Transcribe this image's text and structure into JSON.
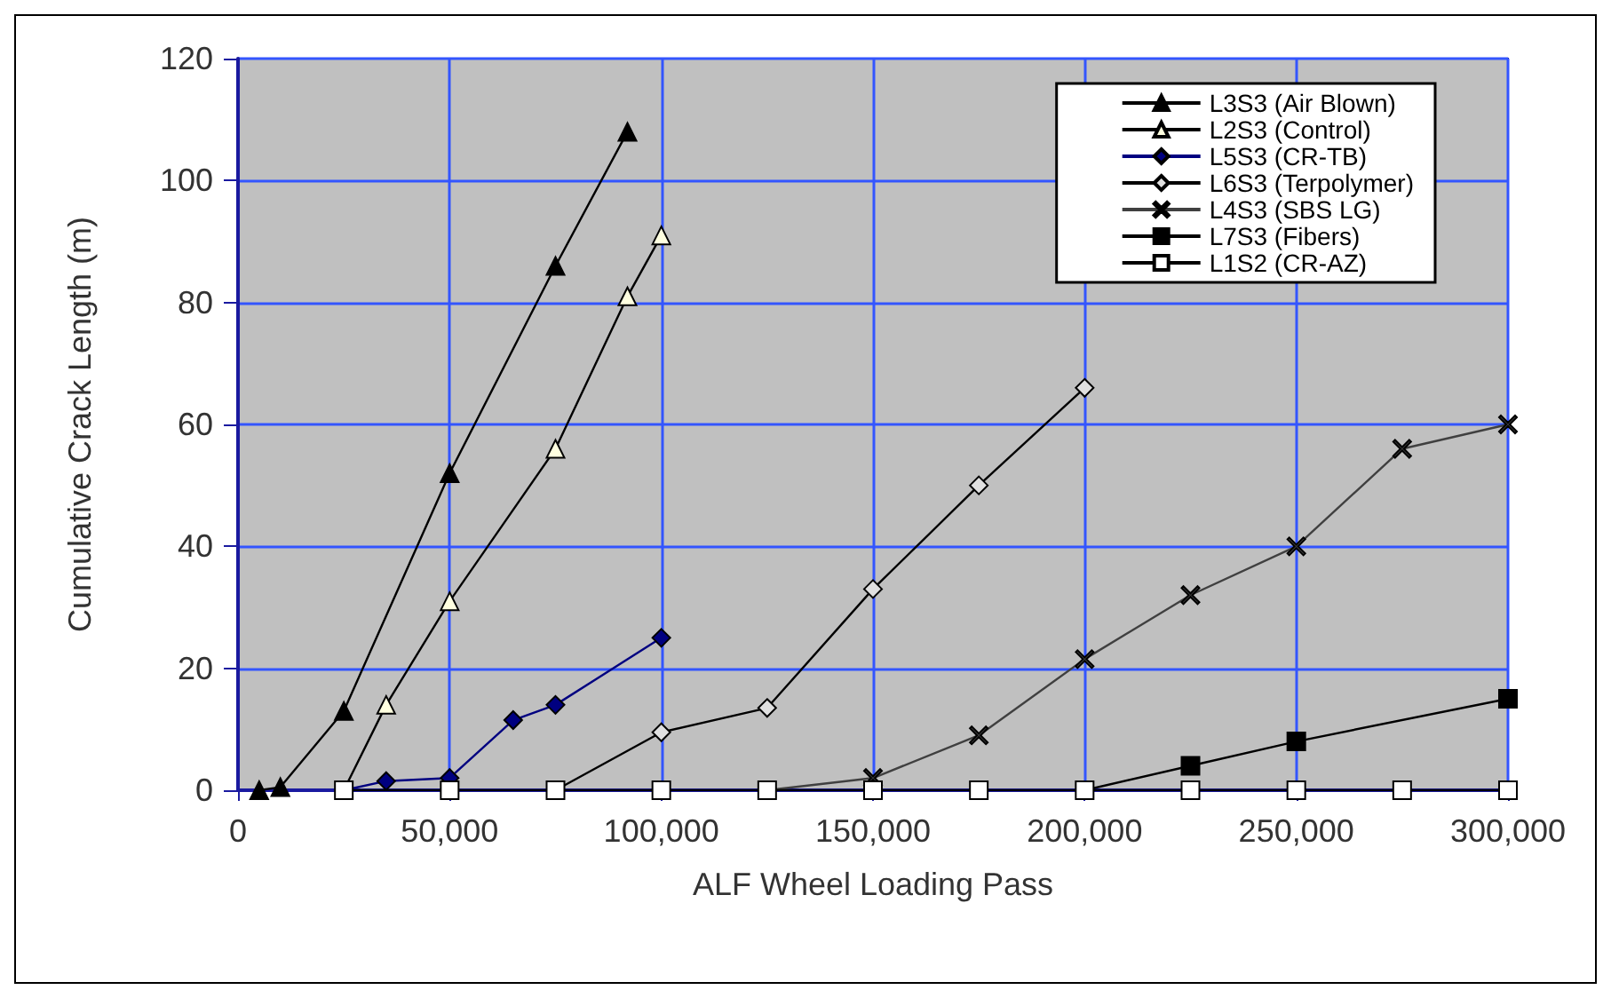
{
  "chart_data": {
    "type": "line",
    "xlabel": "ALF Wheel Loading Pass",
    "ylabel": "Cumulative Crack Length (m)",
    "xlim": [
      0,
      300000
    ],
    "xticks": [
      0,
      {
        "value": 50000,
        "label": "50,000"
      },
      {
        "value": 100000,
        "label": "100,000"
      },
      {
        "value": 150000,
        "label": "150,000"
      },
      {
        "value": 200000,
        "label": "200,000"
      },
      {
        "value": 250000,
        "label": "250,000"
      },
      {
        "value": 300000,
        "label": "300,000"
      }
    ],
    "ylim": [
      0,
      120
    ],
    "yticks": [
      0,
      20,
      40,
      60,
      80,
      100,
      120
    ],
    "grid": true,
    "legend": "top right",
    "series": [
      {
        "name": "L3S3 (Air Blown)",
        "color": "#000000",
        "marker": "triangle",
        "x": [
          5000,
          10000,
          25000,
          50000,
          75000,
          92000
        ],
        "values": [
          0,
          0.5,
          13,
          52,
          86,
          108
        ]
      },
      {
        "name": "L2S3 (Control)",
        "color": "#ffffe0",
        "marker": "triangle",
        "x": [
          25000,
          35000,
          50000,
          75000,
          92000,
          100000
        ],
        "values": [
          0,
          14,
          31,
          56,
          81,
          91
        ]
      },
      {
        "name": "L5S3 (CR-TB)",
        "color": "#000080",
        "marker": "diamond",
        "x": [
          25000,
          35000,
          50000,
          65000,
          75000,
          100000
        ],
        "values": [
          0,
          1.5,
          2,
          11.5,
          14,
          25
        ]
      },
      {
        "name": "L6S3 (Terpolymer)",
        "color": "#e0e0e0",
        "marker": "diamond",
        "x": [
          75000,
          100000,
          125000,
          150000,
          175000,
          200000
        ],
        "values": [
          0,
          9.5,
          13.5,
          33,
          50,
          66
        ]
      },
      {
        "name": "L4S3 (SBS LG)",
        "color": "#404040",
        "marker": "cross",
        "x": [
          125000,
          150000,
          175000,
          200000,
          225000,
          250000,
          275000,
          300000
        ],
        "values": [
          0,
          2,
          9,
          21.5,
          32,
          40,
          56,
          60
        ]
      },
      {
        "name": "L7S3 (Fibers)",
        "color": "#000000",
        "marker": "square",
        "x": [
          200000,
          225000,
          250000,
          300000
        ],
        "values": [
          0,
          4,
          8,
          15
        ]
      },
      {
        "name": "L1S2 (CR-AZ)",
        "color": "#ffffff",
        "marker": "square",
        "x": [
          25000,
          50000,
          75000,
          100000,
          125000,
          150000,
          175000,
          200000,
          225000,
          250000,
          275000,
          300000
        ],
        "values": [
          0,
          0,
          0,
          0,
          0,
          0,
          0,
          0,
          0,
          0,
          0,
          0
        ]
      }
    ]
  }
}
